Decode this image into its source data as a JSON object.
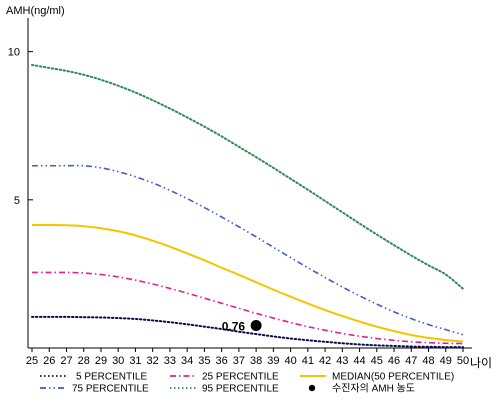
{
  "chart_data": {
    "type": "line",
    "title": "",
    "ylabel": "AMH(ng/ml)",
    "xlabel": "나이",
    "x": [
      25,
      26,
      27,
      28,
      29,
      30,
      31,
      32,
      33,
      34,
      35,
      36,
      37,
      38,
      39,
      40,
      41,
      42,
      43,
      44,
      45,
      46,
      47,
      48,
      49,
      50
    ],
    "y_ticks": [
      5,
      10
    ],
    "xlim": [
      25,
      50
    ],
    "ylim": [
      0,
      11
    ],
    "grid": false,
    "legend_position": "bottom",
    "series": [
      {
        "name": "5 PERCENTILE",
        "color": "#0a0a50",
        "style": "dotted",
        "values": [
          1.05,
          1.05,
          1.05,
          1.04,
          1.03,
          1.01,
          0.98,
          0.93,
          0.87,
          0.8,
          0.72,
          0.64,
          0.55,
          0.47,
          0.39,
          0.32,
          0.26,
          0.21,
          0.16,
          0.12,
          0.09,
          0.07,
          0.05,
          0.04,
          0.03,
          0.03
        ]
      },
      {
        "name": "25 PERCENTILE",
        "color": "#e0208c",
        "style": "dashdot",
        "values": [
          2.55,
          2.55,
          2.55,
          2.53,
          2.48,
          2.4,
          2.29,
          2.16,
          2.01,
          1.85,
          1.68,
          1.51,
          1.34,
          1.17,
          1.01,
          0.86,
          0.72,
          0.6,
          0.49,
          0.4,
          0.32,
          0.26,
          0.21,
          0.18,
          0.16,
          0.15
        ]
      },
      {
        "name": "MEDIAN(50 PERCENTILE)",
        "color": "#f2c500",
        "style": "solid",
        "values": [
          4.15,
          4.15,
          4.14,
          4.11,
          4.04,
          3.94,
          3.8,
          3.62,
          3.42,
          3.19,
          2.96,
          2.71,
          2.47,
          2.22,
          1.97,
          1.73,
          1.5,
          1.28,
          1.08,
          0.89,
          0.72,
          0.57,
          0.44,
          0.34,
          0.27,
          0.22
        ]
      },
      {
        "name": "75 PERCENTILE",
        "color": "#3f5fc8",
        "style": "dashdotdot",
        "values": [
          6.15,
          6.15,
          6.15,
          6.15,
          6.08,
          5.95,
          5.78,
          5.57,
          5.32,
          5.04,
          4.74,
          4.42,
          4.09,
          3.75,
          3.4,
          3.05,
          2.71,
          2.38,
          2.06,
          1.76,
          1.48,
          1.22,
          0.99,
          0.79,
          0.62,
          0.45
        ]
      },
      {
        "name": "95 PERCENTILE",
        "color": "#2e8b57",
        "style": "dotted",
        "values": [
          9.55,
          9.45,
          9.35,
          9.22,
          9.05,
          8.85,
          8.62,
          8.36,
          8.08,
          7.78,
          7.47,
          7.14,
          6.79,
          6.44,
          6.08,
          5.71,
          5.34,
          4.96,
          4.58,
          4.2,
          3.83,
          3.47,
          3.12,
          2.79,
          2.48,
          2.0
        ]
      }
    ],
    "marker": {
      "name": "수진자의 AMH 농도",
      "x": 38,
      "y": 0.76,
      "label": "0.76",
      "color": "#000000"
    }
  }
}
